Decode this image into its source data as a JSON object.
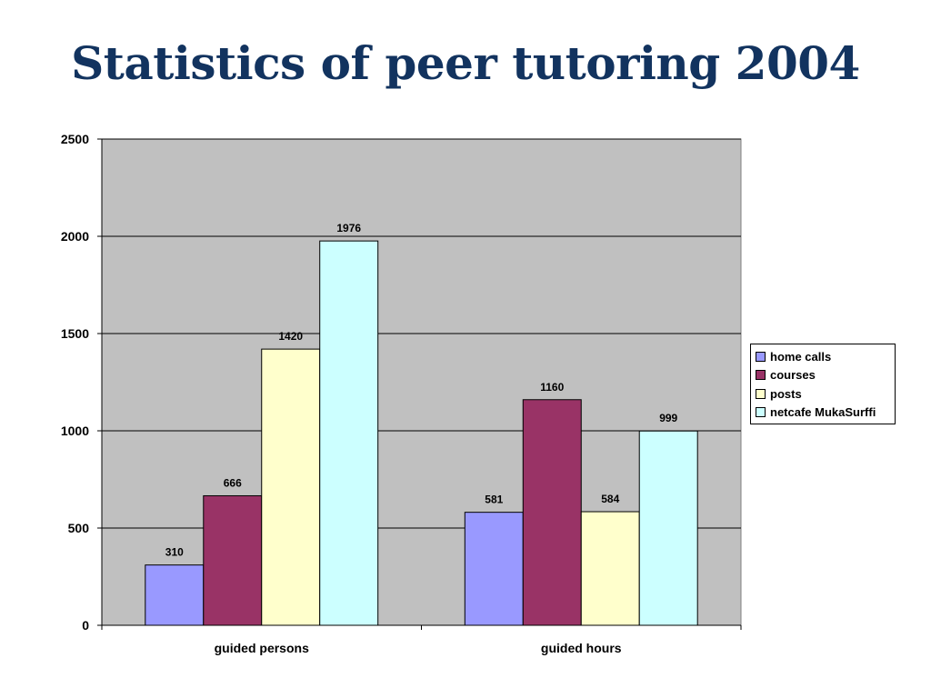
{
  "slide": {
    "title": "Statistics of peer tutoring 2004"
  },
  "chart_data": {
    "type": "bar",
    "title": "",
    "xlabel": "",
    "ylabel": "",
    "categories": [
      "guided persons",
      "guided hours"
    ],
    "series": [
      {
        "name": "home calls",
        "color": "#9999ff",
        "values": [
          310,
          581
        ]
      },
      {
        "name": "courses",
        "color": "#993366",
        "values": [
          666,
          1160
        ]
      },
      {
        "name": "posts",
        "color": "#ffffcc",
        "values": [
          1420,
          584
        ]
      },
      {
        "name": "netcafe MukaSurffi",
        "color": "#ccffff",
        "values": [
          1976,
          999
        ]
      }
    ],
    "ylim": [
      0,
      2500
    ],
    "yticks": [
      0,
      500,
      1000,
      1500,
      2000,
      2500
    ],
    "grid": true,
    "plot_background": "#c0c0c0",
    "legend_position": "right",
    "data_labels": true
  }
}
